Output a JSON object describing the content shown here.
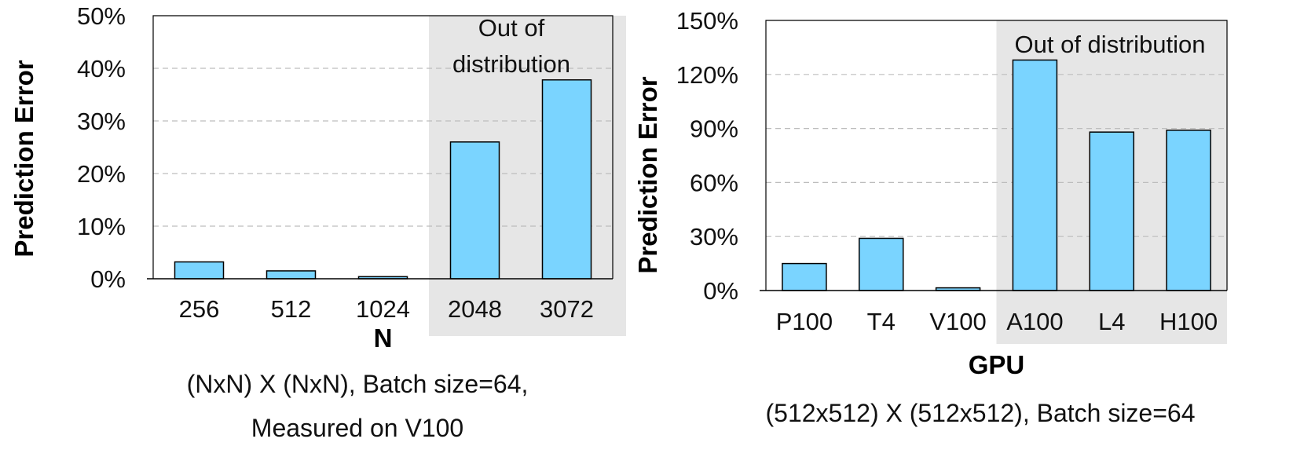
{
  "chart_data": [
    {
      "type": "bar",
      "categories": [
        "256",
        "512",
        "1024",
        "2048",
        "3072"
      ],
      "values": [
        3.2,
        1.5,
        0.4,
        26,
        37.8
      ],
      "xlabel": "N",
      "ylabel": "Prediction Error",
      "ylim": [
        0,
        50
      ],
      "yticks": [
        "0%",
        "10%",
        "20%",
        "30%",
        "40%",
        "50%"
      ],
      "grid": true,
      "bar_color": "#7AD4FF",
      "shade_color": "#E6E6E6",
      "out_of_distribution": {
        "label_lines": [
          "Out of",
          "distribution"
        ],
        "from_index": 3
      },
      "caption_lines": [
        "(NxN) X (NxN), Batch size=64,",
        "Measured on V100"
      ]
    },
    {
      "type": "bar",
      "categories": [
        "P100",
        "T4",
        "V100",
        "A100",
        "L4",
        "H100"
      ],
      "values": [
        15,
        29,
        1.5,
        128,
        88,
        89
      ],
      "xlabel": "GPU",
      "ylabel": "Prediction Error",
      "ylim": [
        0,
        150
      ],
      "yticks": [
        "0%",
        "30%",
        "60%",
        "90%",
        "120%",
        "150%"
      ],
      "grid": true,
      "bar_color": "#7AD4FF",
      "shade_color": "#E6E6E6",
      "out_of_distribution": {
        "label_lines": [
          "Out of distribution"
        ],
        "from_index": 3
      },
      "caption_lines": [
        "(512x512) X (512x512), Batch size=64"
      ]
    }
  ]
}
